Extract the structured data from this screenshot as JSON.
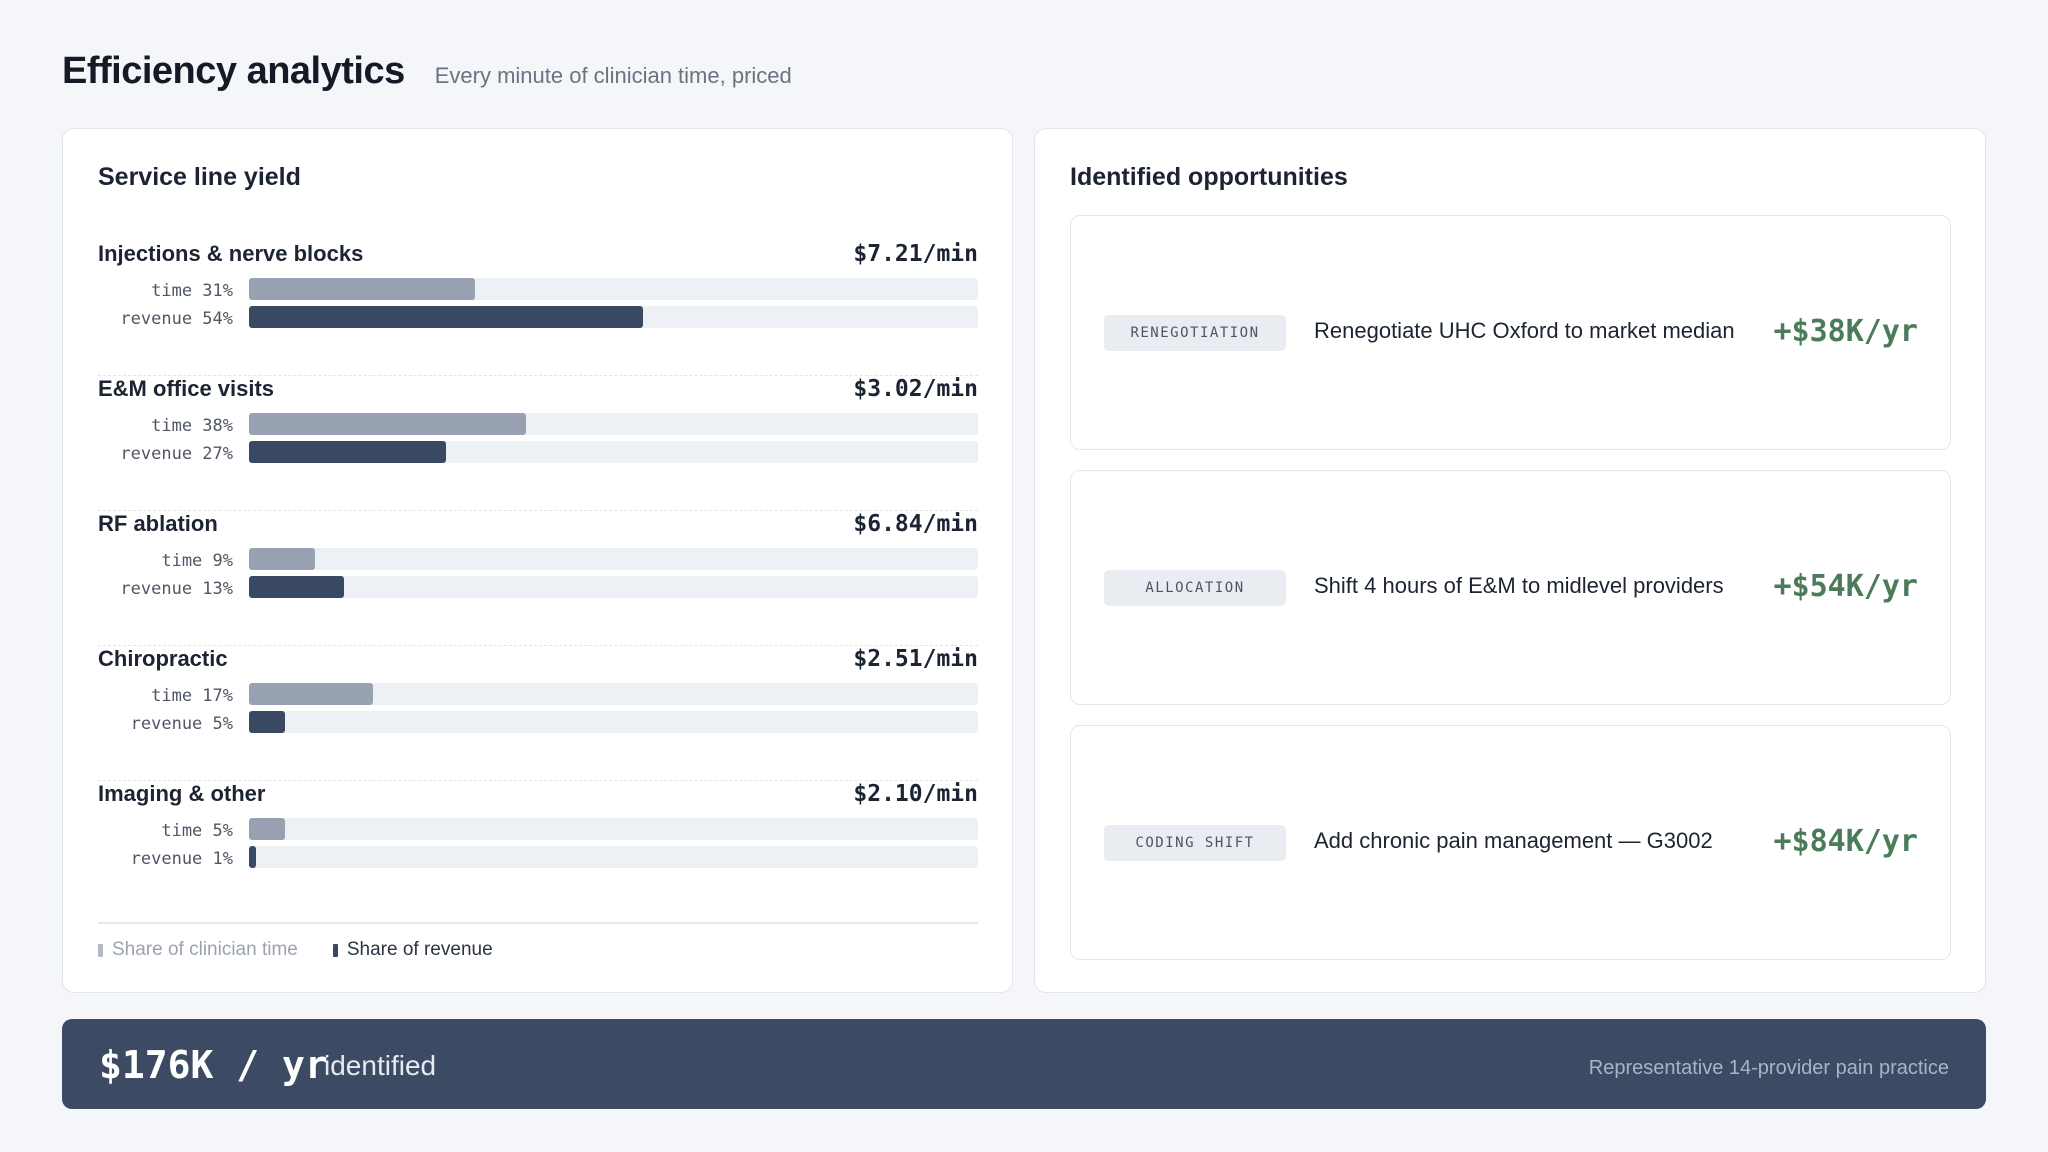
{
  "header": {
    "title": "Efficiency analytics",
    "subtitle": "Every minute of clinician time, priced"
  },
  "yield": {
    "title": "Service line yield",
    "time_prefix": "time",
    "revenue_prefix": "revenue",
    "lines": [
      {
        "name": "Injections & nerve blocks",
        "rate": "$7.21/min",
        "time_label": "time 31%",
        "revenue_label": "revenue 54%",
        "time_pct": 31,
        "revenue_pct": 54
      },
      {
        "name": "E&M office visits",
        "rate": "$3.02/min",
        "time_label": "time 38%",
        "revenue_label": "revenue 27%",
        "time_pct": 38,
        "revenue_pct": 27
      },
      {
        "name": "RF ablation",
        "rate": "$6.84/min",
        "time_label": "time 9%",
        "revenue_label": "revenue 13%",
        "time_pct": 9,
        "revenue_pct": 13
      },
      {
        "name": "Chiropractic",
        "rate": "$2.51/min",
        "time_label": "time 17%",
        "revenue_label": "revenue 5%",
        "time_pct": 17,
        "revenue_pct": 5
      },
      {
        "name": "Imaging & other",
        "rate": "$2.10/min",
        "time_label": "time 5%",
        "revenue_label": "revenue 1%",
        "time_pct": 5,
        "revenue_pct": 1
      }
    ],
    "legend": {
      "time": "Share of clinician time",
      "revenue": "Share of revenue"
    }
  },
  "opportunities": {
    "title": "Identified opportunities",
    "items": [
      {
        "tag": "RENEGOTIATION",
        "description": "Renegotiate UHC Oxford to market median",
        "value": "+$38K/yr"
      },
      {
        "tag": "ALLOCATION",
        "description": "Shift 4 hours of E&M to midlevel providers",
        "value": "+$54K/yr"
      },
      {
        "tag": "CODING SHIFT",
        "description": "Add chronic pain management — G3002",
        "value": "+$84K/yr"
      }
    ]
  },
  "footer": {
    "total": "$176K / yr",
    "suffix": "identified",
    "note": "Representative 14-provider pain practice"
  },
  "colors": {
    "time_bar": "#98a1b1",
    "revenue_bar": "#3a4963",
    "value_green": "#4a7c59",
    "footer_bg": "#3c4a63"
  }
}
